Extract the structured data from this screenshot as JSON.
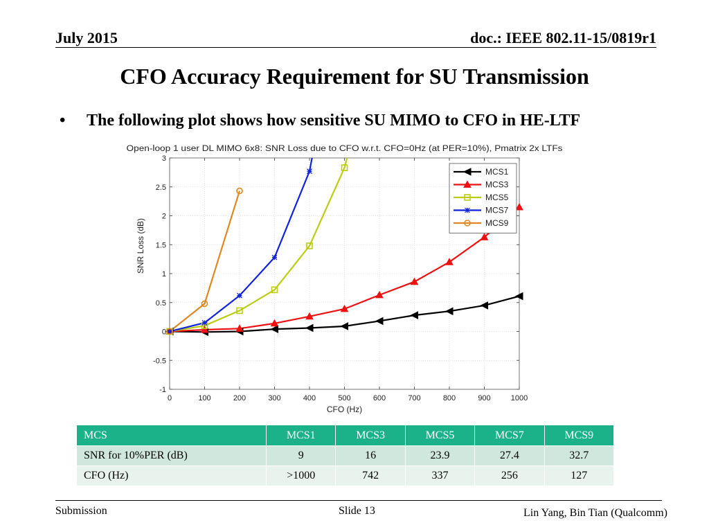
{
  "header": {
    "date": "July 2015",
    "doc": "doc.: IEEE 802.11-15/0819r1"
  },
  "title": "CFO Accuracy Requirement for SU Transmission",
  "bullet": {
    "marker": "•",
    "text": "The following plot shows how sensitive SU MIMO to CFO in HE-LTF"
  },
  "chart_data": {
    "type": "line",
    "title": "Open-loop 1 user DL MIMO 6x8: SNR Loss due to CFO w.r.t. CFO=0Hz (at PER=10%), Pmatrix 2x LTFs",
    "xlabel": "CFO (Hz)",
    "ylabel": "SNR Loss (dB)",
    "xlim": [
      0,
      1000
    ],
    "ylim": [
      -1,
      3
    ],
    "xticks": [
      0,
      100,
      200,
      300,
      400,
      500,
      600,
      700,
      800,
      900,
      1000
    ],
    "yticks": [
      -1,
      -0.5,
      0,
      0.5,
      1,
      1.5,
      2,
      2.5,
      3
    ],
    "ytick_labels": [
      "-1",
      "-0.5",
      "0",
      "0.5",
      "1",
      "1.5",
      "2",
      "2.5",
      "3"
    ],
    "grid": true,
    "legend_position": "top-right",
    "series": [
      {
        "name": "MCS1",
        "color": "#000000",
        "marker": "triangle-left",
        "x": [
          0,
          100,
          200,
          300,
          400,
          500,
          600,
          700,
          800,
          900,
          1000
        ],
        "y": [
          0,
          -0.01,
          0.0,
          0.04,
          0.06,
          0.09,
          0.18,
          0.28,
          0.35,
          0.45,
          0.61
        ]
      },
      {
        "name": "MCS3",
        "color": "#ee1111",
        "marker": "triangle-up",
        "x": [
          0,
          100,
          200,
          300,
          400,
          500,
          600,
          700,
          800,
          900,
          1000
        ],
        "y": [
          0,
          0.03,
          0.05,
          0.14,
          0.26,
          0.39,
          0.63,
          0.86,
          1.2,
          1.63,
          2.15
        ]
      },
      {
        "name": "MCS5",
        "color": "#bbcc11",
        "marker": "square",
        "x": [
          0,
          100,
          200,
          300,
          400,
          500,
          520
        ],
        "y": [
          0,
          0.1,
          0.36,
          0.72,
          1.48,
          2.83,
          3.3
        ]
      },
      {
        "name": "MCS7",
        "color": "#1122dd",
        "marker": "star",
        "x": [
          0,
          100,
          200,
          300,
          400,
          420
        ],
        "y": [
          0,
          0.15,
          0.62,
          1.28,
          2.77,
          3.4
        ]
      },
      {
        "name": "MCS9",
        "color": "#dd8822",
        "marker": "circle",
        "x": [
          0,
          100,
          200
        ],
        "y": [
          0,
          0.48,
          2.43
        ]
      }
    ]
  },
  "table": {
    "headers": [
      "MCS",
      "MCS1",
      "MCS3",
      "MCS5",
      "MCS7",
      "MCS9"
    ],
    "rows": [
      [
        "SNR for 10%PER (dB)",
        "9",
        "16",
        "23.9",
        "27.4",
        "32.7"
      ],
      [
        "CFO (Hz)",
        ">1000",
        "742",
        "337",
        "256",
        "127"
      ]
    ]
  },
  "footer": {
    "left": "Submission",
    "center": "Slide 13",
    "right": "Lin Yang, Bin Tian (Qualcomm)"
  }
}
